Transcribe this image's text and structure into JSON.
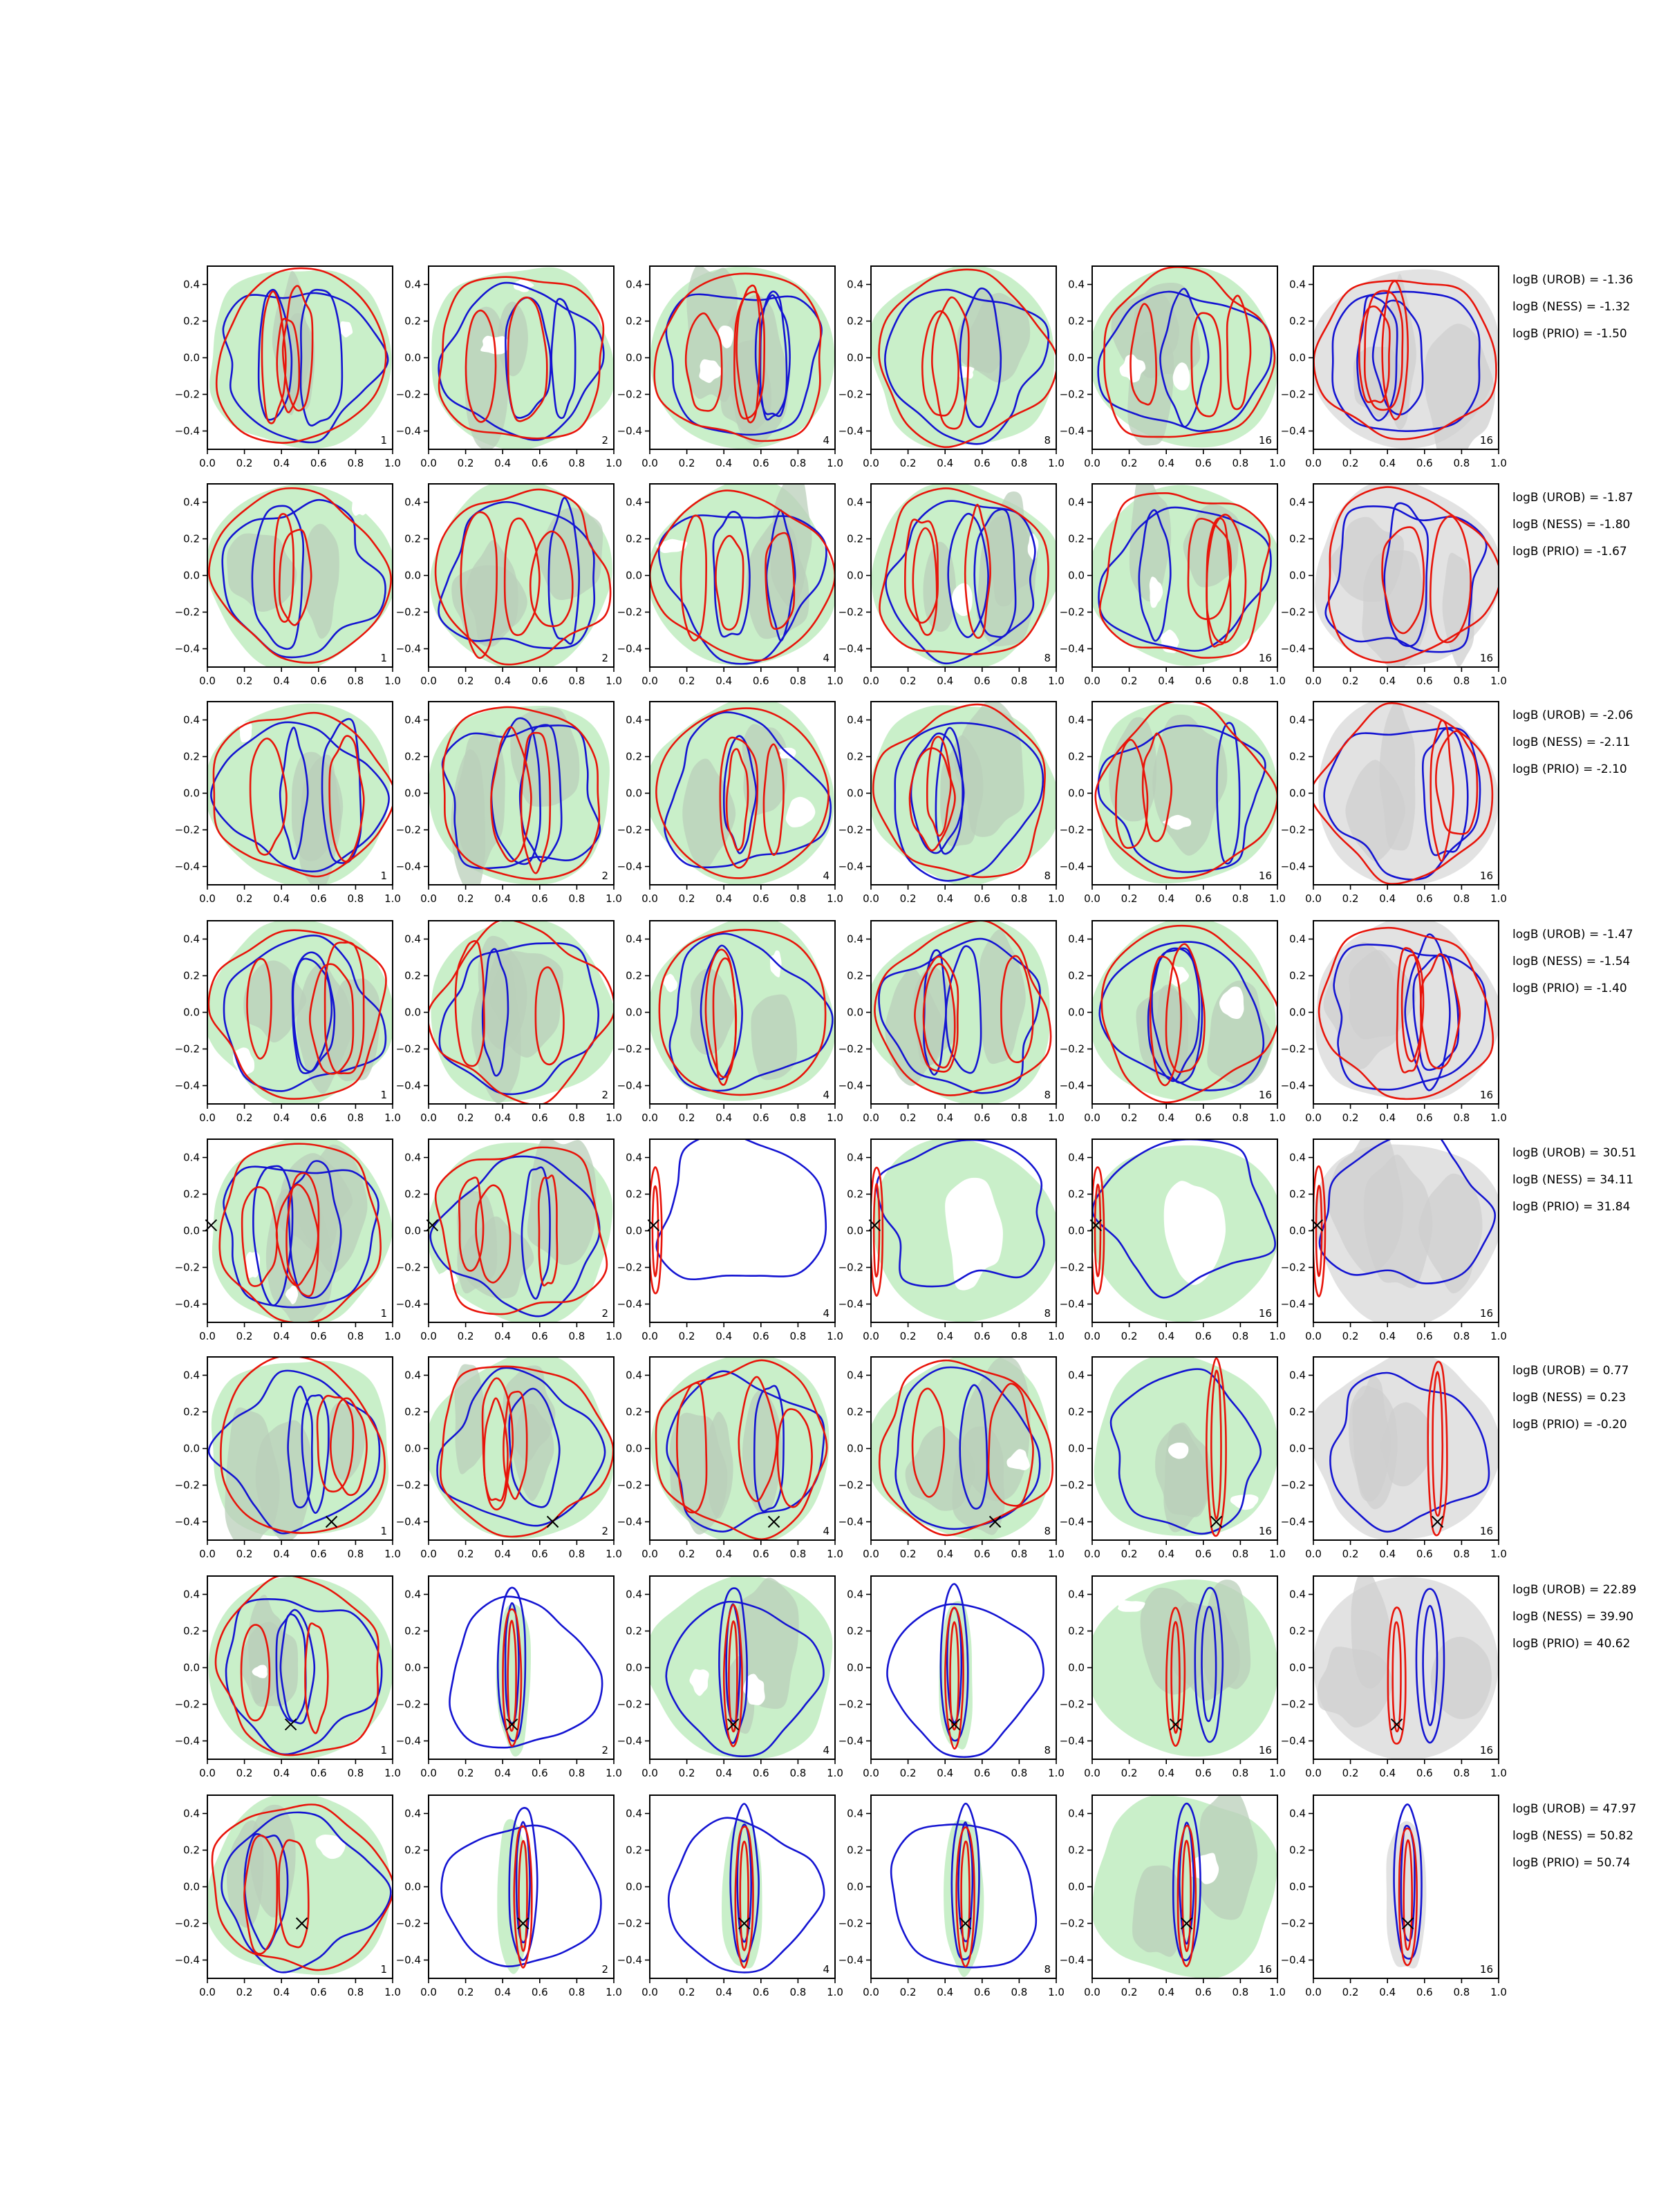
{
  "chart_data": {
    "type": "contour",
    "layout": "grid of 8 rows x 6 columns of contour panels, with log Bayes factor annotations to the right of each row",
    "xlim": [
      0.0,
      1.0
    ],
    "ylim": [
      -0.5,
      0.5
    ],
    "xticks": [
      "0.0",
      "0.2",
      "0.4",
      "0.6",
      "0.8",
      "1.0"
    ],
    "yticks": [
      "0.4",
      "0.2",
      "0.0",
      "−0.2",
      "−0.4"
    ],
    "panel_labels": [
      "1",
      "2",
      "4",
      "8",
      "16",
      "16"
    ],
    "colors": {
      "red_contours": "#e8140a",
      "blue_contours": "#1414d2",
      "green_fill": "#c9efc9",
      "gray_fill_in_green": "#b9cfb9",
      "gray_fill_last_column": "#e2e2e2",
      "gray_fill_dark": "#cfcfcf",
      "true_value_marker": "#000000"
    },
    "rows": [
      {
        "annotations": [
          "logB (UROB) = -1.36",
          "logB (NESS) = -1.32",
          "logB (PRIO) = -1.50"
        ],
        "marker": null
      },
      {
        "annotations": [
          "logB (UROB) = -1.87",
          "logB (NESS) = -1.80",
          "logB (PRIO) = -1.67"
        ],
        "marker": null
      },
      {
        "annotations": [
          "logB (UROB) = -2.06",
          "logB (NESS) = -2.11",
          "logB (PRIO) = -2.10"
        ],
        "marker": null
      },
      {
        "annotations": [
          "logB (UROB) = -1.47",
          "logB (NESS) = -1.54",
          "logB (PRIO) = -1.40"
        ],
        "marker": null
      },
      {
        "annotations": [
          "logB (UROB) = 30.51",
          "logB (NESS) = 34.11",
          "logB (PRIO) = 31.84"
        ],
        "marker": [
          0.02,
          0.03
        ]
      },
      {
        "annotations": [
          "logB (UROB) = 0.77",
          "logB (NESS) = 0.23",
          "logB (PRIO) = -0.20"
        ],
        "marker": [
          0.67,
          -0.4
        ]
      },
      {
        "annotations": [
          "logB (UROB) = 22.89",
          "logB (NESS) = 39.90",
          "logB (PRIO) = 40.62"
        ],
        "marker": [
          0.45,
          -0.31
        ]
      },
      {
        "annotations": [
          "logB (UROB) = 47.97",
          "logB (NESS) = 50.82",
          "logB (PRIO) = 50.74"
        ],
        "marker": [
          0.51,
          -0.2
        ]
      }
    ]
  }
}
